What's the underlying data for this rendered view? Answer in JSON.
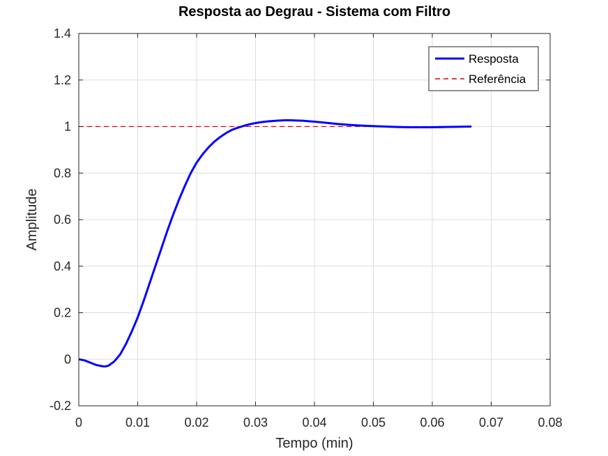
{
  "chart_data": {
    "type": "line",
    "title": "Resposta ao Degrau - Sistema com Filtro",
    "xlabel": "Tempo (min)",
    "ylabel": "Amplitude",
    "xlim": [
      0,
      0.08
    ],
    "ylim": [
      -0.2,
      1.4
    ],
    "xticks": [
      0,
      0.01,
      0.02,
      0.03,
      0.04,
      0.05,
      0.06,
      0.07,
      0.08
    ],
    "xtick_labels": [
      "0",
      "0.01",
      "0.02",
      "0.03",
      "0.04",
      "0.05",
      "0.06",
      "0.07",
      "0.08"
    ],
    "yticks": [
      -0.2,
      0,
      0.2,
      0.4,
      0.6,
      0.8,
      1,
      1.2,
      1.4
    ],
    "ytick_labels": [
      "-0.2",
      "0",
      "0.2",
      "0.4",
      "0.6",
      "0.8",
      "1",
      "1.2",
      "1.4"
    ],
    "grid": true,
    "legend_position": "top-right",
    "series": [
      {
        "name": "Resposta",
        "color": "#0000ff",
        "style": "solid",
        "x": [
          0,
          0.001,
          0.002,
          0.003,
          0.004,
          0.0045,
          0.005,
          0.006,
          0.007,
          0.008,
          0.009,
          0.01,
          0.011,
          0.012,
          0.013,
          0.014,
          0.015,
          0.016,
          0.017,
          0.018,
          0.019,
          0.02,
          0.021,
          0.022,
          0.023,
          0.024,
          0.025,
          0.026,
          0.027,
          0.028,
          0.029,
          0.03,
          0.031,
          0.032,
          0.033,
          0.034,
          0.035,
          0.036,
          0.037,
          0.038,
          0.039,
          0.04,
          0.042,
          0.044,
          0.046,
          0.048,
          0.05,
          0.052,
          0.054,
          0.056,
          0.058,
          0.06,
          0.062,
          0.064,
          0.0665
        ],
        "y": [
          0,
          -0.005,
          -0.015,
          -0.025,
          -0.03,
          -0.031,
          -0.028,
          -0.01,
          0.02,
          0.065,
          0.12,
          0.18,
          0.25,
          0.325,
          0.4,
          0.475,
          0.55,
          0.62,
          0.685,
          0.745,
          0.8,
          0.845,
          0.88,
          0.91,
          0.935,
          0.955,
          0.972,
          0.986,
          0.995,
          1.003,
          1.01,
          1.015,
          1.019,
          1.022,
          1.024,
          1.026,
          1.027,
          1.027,
          1.026,
          1.025,
          1.023,
          1.021,
          1.016,
          1.011,
          1.007,
          1.004,
          1.002,
          1.0,
          0.998,
          0.997,
          0.997,
          0.997,
          0.998,
          0.999,
          1.0
        ]
      },
      {
        "name": "Referência",
        "color": "#e00000",
        "style": "dashed",
        "x": [
          0,
          0.0665
        ],
        "y": [
          1,
          1
        ]
      }
    ]
  }
}
